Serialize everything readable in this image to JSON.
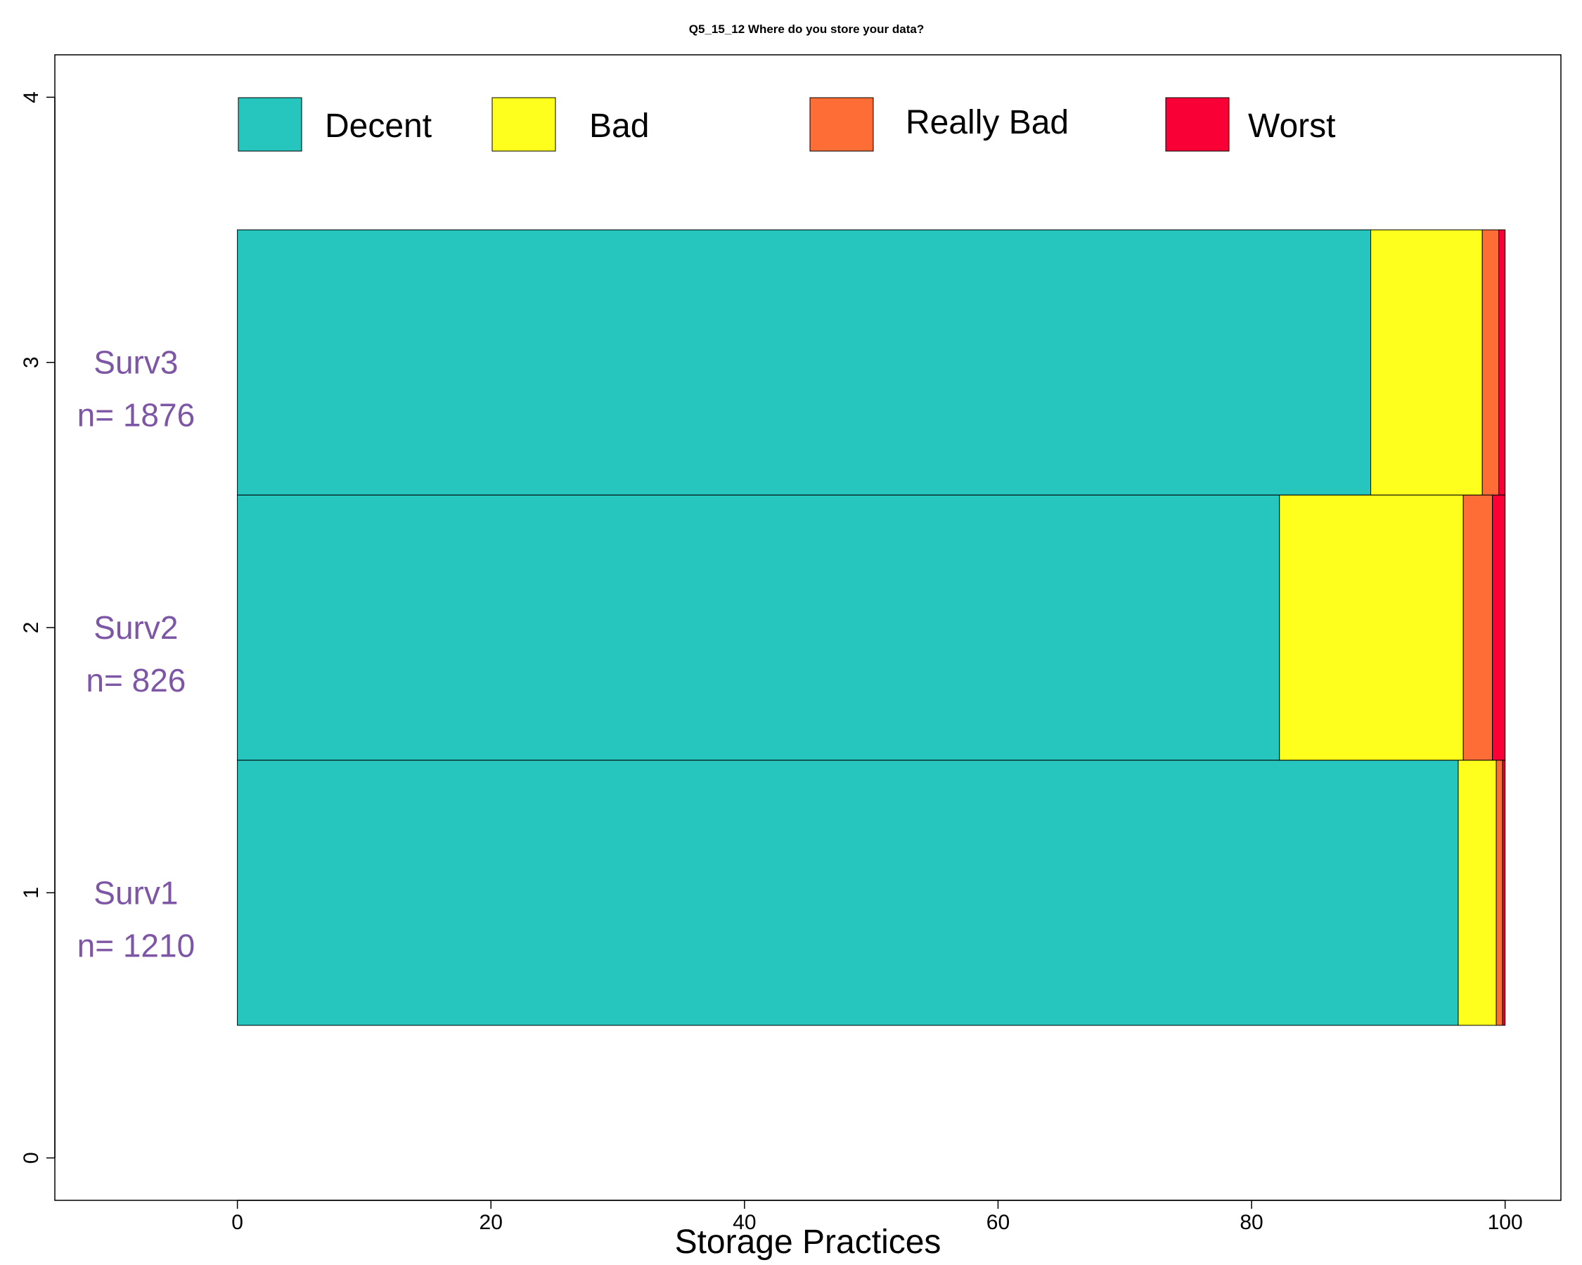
{
  "chart_data": {
    "type": "bar",
    "orientation": "horizontal",
    "stacked": true,
    "title": "Q5_15_12  Where do you store your data?",
    "xlabel": "Storage Practices",
    "ylabel": "",
    "xlim": [
      -14.4,
      104.4
    ],
    "ylim": [
      -0.16,
      4.16
    ],
    "x_ticks": [
      0,
      20,
      40,
      60,
      80,
      100
    ],
    "y_ticks": [
      0,
      1,
      2,
      3,
      4
    ],
    "grid": false,
    "legend_position": "top",
    "group_label_color": "#7D56A6",
    "categories": [
      {
        "name": "Surv1",
        "n_label": "n= 1210",
        "position": 1
      },
      {
        "name": "Surv2",
        "n_label": "n= 826",
        "position": 2
      },
      {
        "name": "Surv3",
        "n_label": "n= 1876",
        "position": 3
      }
    ],
    "series": [
      {
        "name": "Decent",
        "color": "#26C5BD",
        "values": [
          96.3,
          82.2,
          89.4
        ]
      },
      {
        "name": "Bad",
        "color": "#FFFF1E",
        "values": [
          3.0,
          14.5,
          8.8
        ]
      },
      {
        "name": "Really Bad",
        "color": "#FF6D37",
        "values": [
          0.5,
          2.3,
          1.3
        ]
      },
      {
        "name": "Worst",
        "color": "#F90037",
        "values": [
          0.2,
          1.0,
          0.5
        ]
      }
    ]
  }
}
